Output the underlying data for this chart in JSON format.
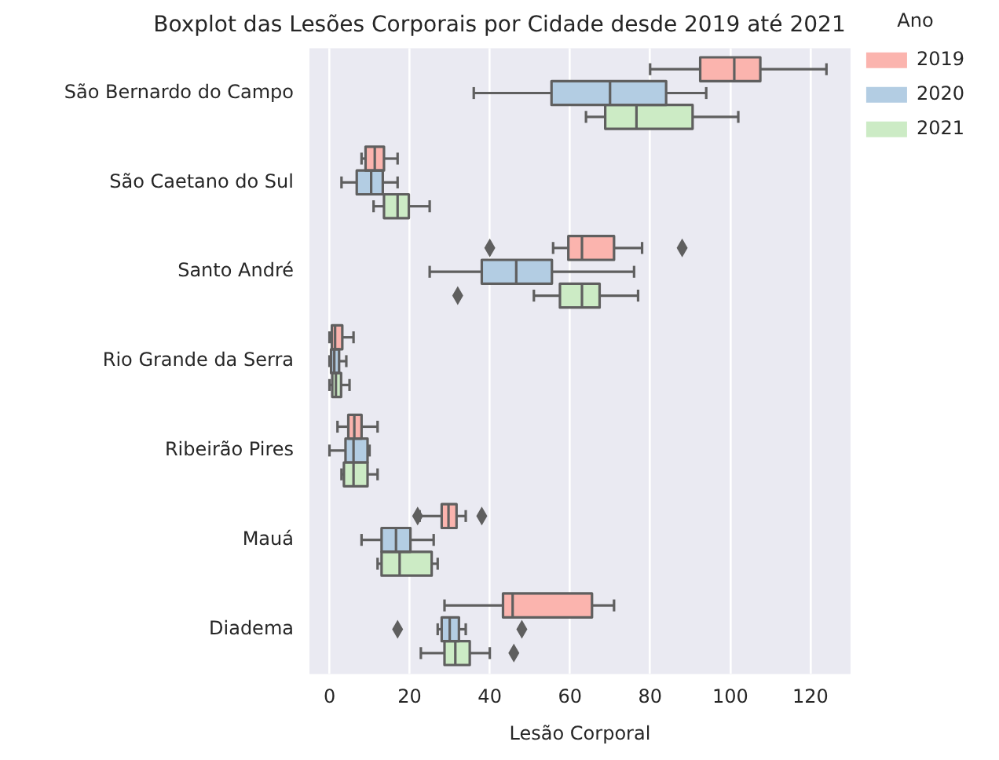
{
  "chart_data": {
    "type": "box",
    "orientation": "horizontal",
    "title": "Boxplot das Lesões Corporais por Cidade desde 2019 até 2021",
    "xlabel": "Lesão Corporal",
    "legend_title": "Ano",
    "legend": "top right",
    "grid": "x",
    "categories": [
      "São Bernardo do Campo",
      "São Caetano do Sul",
      "Santo André",
      "Rio Grande da Serra",
      "Ribeirão Pires",
      "Mauá",
      "Diadema"
    ],
    "xlim": [
      -5,
      130
    ],
    "xticks": [
      0,
      20,
      40,
      60,
      80,
      100,
      120
    ],
    "series": [
      {
        "name": "2019",
        "color": "#fbb4ae",
        "boxes": [
          {
            "low": 80,
            "q1": 92.5,
            "median": 101,
            "q3": 107.5,
            "high": 124
          },
          {
            "low": 8,
            "q1": 9,
            "median": 11.3,
            "q3": 13.6,
            "high": 17
          },
          {
            "low": 55.8,
            "q1": 59.6,
            "median": 63,
            "q3": 71,
            "high": 78,
            "outliers": [
              40,
              88
            ]
          },
          {
            "low": 0,
            "q1": 0.6,
            "median": 1.4,
            "q3": 3.2,
            "high": 6
          },
          {
            "low": 2,
            "q1": 4.7,
            "median": 6.2,
            "q3": 8,
            "high": 12
          },
          {
            "low": 22.5,
            "q1": 28,
            "median": 29.7,
            "q3": 31.7,
            "high": 34,
            "outliers": [
              22,
              38
            ]
          },
          {
            "low": 28.7,
            "q1": 43.3,
            "median": 45.7,
            "q3": 65.5,
            "high": 71
          }
        ]
      },
      {
        "name": "2020",
        "color": "#b3cde3",
        "boxes": [
          {
            "low": 36,
            "q1": 55.4,
            "median": 70,
            "q3": 84,
            "high": 94
          },
          {
            "low": 3,
            "q1": 6.8,
            "median": 10.4,
            "q3": 13.3,
            "high": 17
          },
          {
            "low": 25,
            "q1": 38,
            "median": 46.6,
            "q3": 55.5,
            "high": 76
          },
          {
            "low": 0,
            "q1": 0.4,
            "median": 1.2,
            "q3": 2.4,
            "high": 4.2
          },
          {
            "low": 0,
            "q1": 4,
            "median": 6,
            "q3": 9.5,
            "high": 10
          },
          {
            "low": 8,
            "q1": 13,
            "median": 16.6,
            "q3": 20.2,
            "high": 26
          },
          {
            "low": 27,
            "q1": 28,
            "median": 30,
            "q3": 32.3,
            "high": 34,
            "outliers": [
              17,
              48
            ]
          }
        ]
      },
      {
        "name": "2021",
        "color": "#ccebc5",
        "boxes": [
          {
            "low": 64,
            "q1": 68.8,
            "median": 76.6,
            "q3": 90.6,
            "high": 102
          },
          {
            "low": 11,
            "q1": 13.6,
            "median": 17,
            "q3": 19.8,
            "high": 25
          },
          {
            "low": 51,
            "q1": 57.5,
            "median": 63,
            "q3": 67.4,
            "high": 77,
            "outliers": [
              32
            ]
          },
          {
            "low": 0,
            "q1": 0.7,
            "median": 1.6,
            "q3": 2.9,
            "high": 5
          },
          {
            "low": 3,
            "q1": 3.6,
            "median": 6,
            "q3": 9.5,
            "high": 12
          },
          {
            "low": 12,
            "q1": 13,
            "median": 17.5,
            "q3": 25.5,
            "high": 27
          },
          {
            "low": 22.8,
            "q1": 28.7,
            "median": 31.4,
            "q3": 35,
            "high": 40,
            "outliers": [
              46
            ]
          }
        ]
      }
    ]
  }
}
